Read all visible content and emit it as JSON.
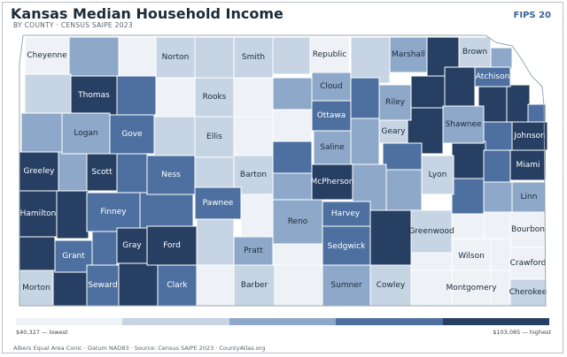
{
  "header": {
    "title": "Kansas Median Household Income",
    "subtitle": "BY COUNTY · CENSUS SAIPE 2023",
    "badge": "FIPS 20"
  },
  "legend": {
    "low_label": "$40,327 — lowest",
    "high_label": "$103,085 — highest",
    "colors": [
      "#eef2f7",
      "#c7d4e4",
      "#8ea8c9",
      "#4d70a0",
      "#263f63"
    ]
  },
  "footer": "Albers Equal Area Conic · Datum NAD83 · Source: Census SAIPE 2023 · CountyAtlas.org",
  "counties": [
    {
      "name": "Cheyenne",
      "level": 0
    },
    {
      "name": "Norton",
      "level": 1
    },
    {
      "name": "Smith",
      "level": 1
    },
    {
      "name": "Republic",
      "level": 0
    },
    {
      "name": "Marshall",
      "level": 2
    },
    {
      "name": "Brown",
      "level": 1
    },
    {
      "name": "Thomas",
      "level": 4
    },
    {
      "name": "Rooks",
      "level": 1
    },
    {
      "name": "Cloud",
      "level": 2
    },
    {
      "name": "Riley",
      "level": 2
    },
    {
      "name": "Atchison",
      "level": 3
    },
    {
      "name": "Logan",
      "level": 2
    },
    {
      "name": "Gove",
      "level": 3
    },
    {
      "name": "Ellis",
      "level": 1
    },
    {
      "name": "Ottawa",
      "level": 3
    },
    {
      "name": "Geary",
      "level": 1
    },
    {
      "name": "Shawnee",
      "level": 2
    },
    {
      "name": "Johnson",
      "level": 4
    },
    {
      "name": "Saline",
      "level": 2
    },
    {
      "name": "Greeley",
      "level": 4
    },
    {
      "name": "Scott",
      "level": 4
    },
    {
      "name": "Ness",
      "level": 3
    },
    {
      "name": "Barton",
      "level": 1
    },
    {
      "name": "McPherson",
      "level": 4
    },
    {
      "name": "Lyon",
      "level": 1
    },
    {
      "name": "Miami",
      "level": 4
    },
    {
      "name": "Linn",
      "level": 2
    },
    {
      "name": "Pawnee",
      "level": 3
    },
    {
      "name": "Hamilton",
      "level": 4
    },
    {
      "name": "Finney",
      "level": 3
    },
    {
      "name": "Harvey",
      "level": 3
    },
    {
      "name": "Reno",
      "level": 2
    },
    {
      "name": "Greenwood",
      "level": 1
    },
    {
      "name": "Bourbon",
      "level": 0
    },
    {
      "name": "Gray",
      "level": 4
    },
    {
      "name": "Ford",
      "level": 4
    },
    {
      "name": "Pratt",
      "level": 2
    },
    {
      "name": "Sedgwick",
      "level": 3
    },
    {
      "name": "Grant",
      "level": 3
    },
    {
      "name": "Wilson",
      "level": 0
    },
    {
      "name": "Crawford",
      "level": 0
    },
    {
      "name": "Morton",
      "level": 1
    },
    {
      "name": "Seward",
      "level": 3
    },
    {
      "name": "Clark",
      "level": 3
    },
    {
      "name": "Barber",
      "level": 1
    },
    {
      "name": "Sumner",
      "level": 2
    },
    {
      "name": "Cowley",
      "level": 1
    },
    {
      "name": "Montgomery",
      "level": 0
    },
    {
      "name": "Cherokee",
      "level": 1
    }
  ]
}
